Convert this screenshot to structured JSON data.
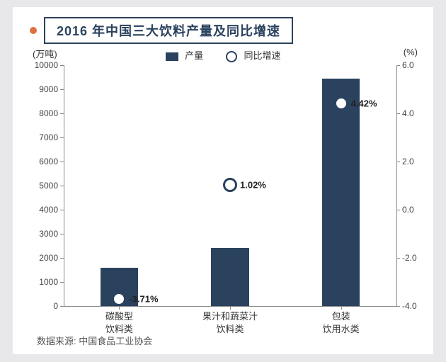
{
  "chart": {
    "type": "bar+scatter",
    "title": "2016 年中国三大饮料产量及同比增速",
    "background_color": "#ffffff",
    "page_background": "#e8e8ea",
    "bullet_color": "#e07040",
    "title_border_color": "#2a425e",
    "title_fontsize": 18,
    "label_fontsize": 13,
    "tick_fontsize": 12,
    "left_axis": {
      "title": "(万吨)",
      "min": 0,
      "max": 10000,
      "step": 1000,
      "ticks": [
        0,
        1000,
        2000,
        3000,
        4000,
        5000,
        6000,
        7000,
        8000,
        9000,
        10000
      ]
    },
    "right_axis": {
      "title": "(%)",
      "min": -4.0,
      "max": 6.0,
      "step": 2.0,
      "ticks": [
        -4.0,
        -2.0,
        0,
        2.0,
        4.0,
        6.0
      ]
    },
    "legend": {
      "bar_label": "产量",
      "marker_label": "同比增速",
      "bar_color": "#2a425e",
      "marker_border": "#2a425e",
      "marker_fill": "#ffffff"
    },
    "categories": [
      {
        "line1": "碳酸型",
        "line2": "饮料类"
      },
      {
        "line1": "果汁和蔬菜汁",
        "line2": "饮料类"
      },
      {
        "line1": "包装",
        "line2": "饮用水类"
      }
    ],
    "bars": {
      "values": [
        1600,
        2400,
        9450
      ],
      "color": "#2a425e",
      "width_ratio": 0.34
    },
    "markers": {
      "values_pct": [
        -3.71,
        1.02,
        4.42
      ],
      "labels": [
        "-3.71%",
        "1.02%",
        "4.42%"
      ],
      "border_color": "#2a425e",
      "fill_color": "#ffffff",
      "size": 14,
      "border_width": 3
    },
    "axis_color": "#888888",
    "source": "数据来源: 中国食品工业协会"
  }
}
